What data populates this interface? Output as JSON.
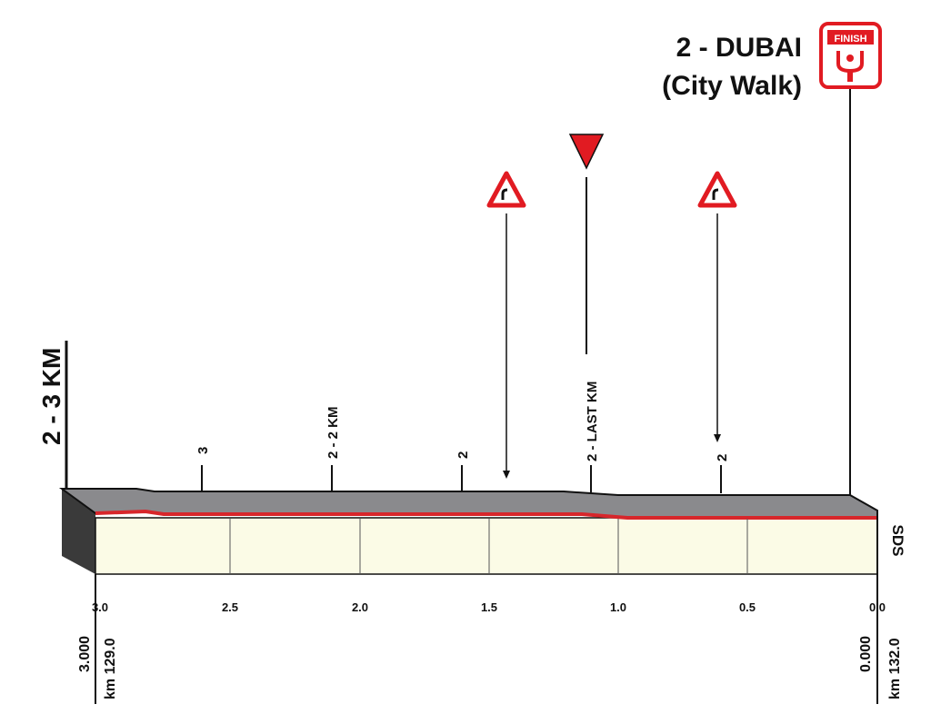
{
  "title": "2 - 3 KM",
  "finish": {
    "name": "2 - DUBAI",
    "place": "(City Walk)",
    "badge": "FINISH"
  },
  "points": [
    {
      "label": "3"
    },
    {
      "label": "2 - 2 KM"
    },
    {
      "label": "2"
    },
    {
      "label": "2 - LAST KM"
    },
    {
      "label": "2"
    }
  ],
  "axis": {
    "ticks": [
      "3.0",
      "2.5",
      "2.0",
      "1.5",
      "1.0",
      "0.5",
      "0.0"
    ]
  },
  "start": {
    "altitude": "3.000",
    "km": "km 129.0"
  },
  "end": {
    "altitude": "0.000",
    "km": "km 132.0"
  },
  "logo": "SDS"
}
